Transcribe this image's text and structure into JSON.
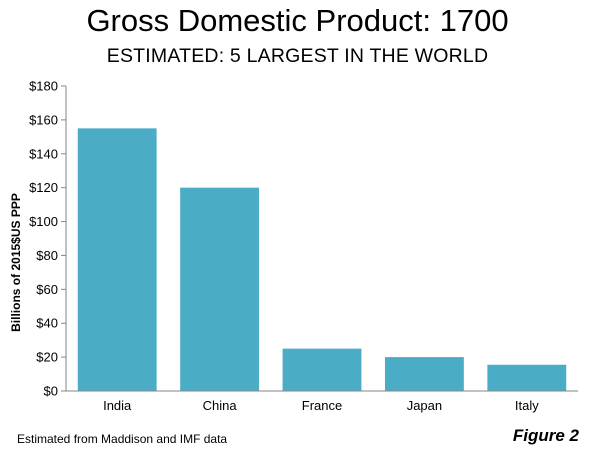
{
  "chart_data": {
    "type": "bar",
    "title": "Gross Domestic Product: 1700",
    "subtitle": "ESTIMATED: 5 LARGEST IN THE WORLD",
    "xlabel": "",
    "ylabel": "Billions of 2015$US  PPP",
    "categories": [
      "India",
      "China",
      "France",
      "Japan",
      "Italy"
    ],
    "values": [
      155,
      120,
      25,
      20,
      15.5
    ],
    "ylim": [
      0,
      180
    ],
    "yticks": [
      0,
      20,
      40,
      60,
      80,
      100,
      120,
      140,
      160,
      180
    ],
    "ytick_labels": [
      "$0",
      "$20",
      "$40",
      "$60",
      "$80",
      "$100",
      "$120",
      "$140",
      "$160",
      "$180"
    ],
    "grid": false,
    "legend": "none",
    "bar_color": "#4BACC6"
  },
  "footnote": "Estimated from Maddison and IMF data",
  "figure_label": "Figure 2"
}
